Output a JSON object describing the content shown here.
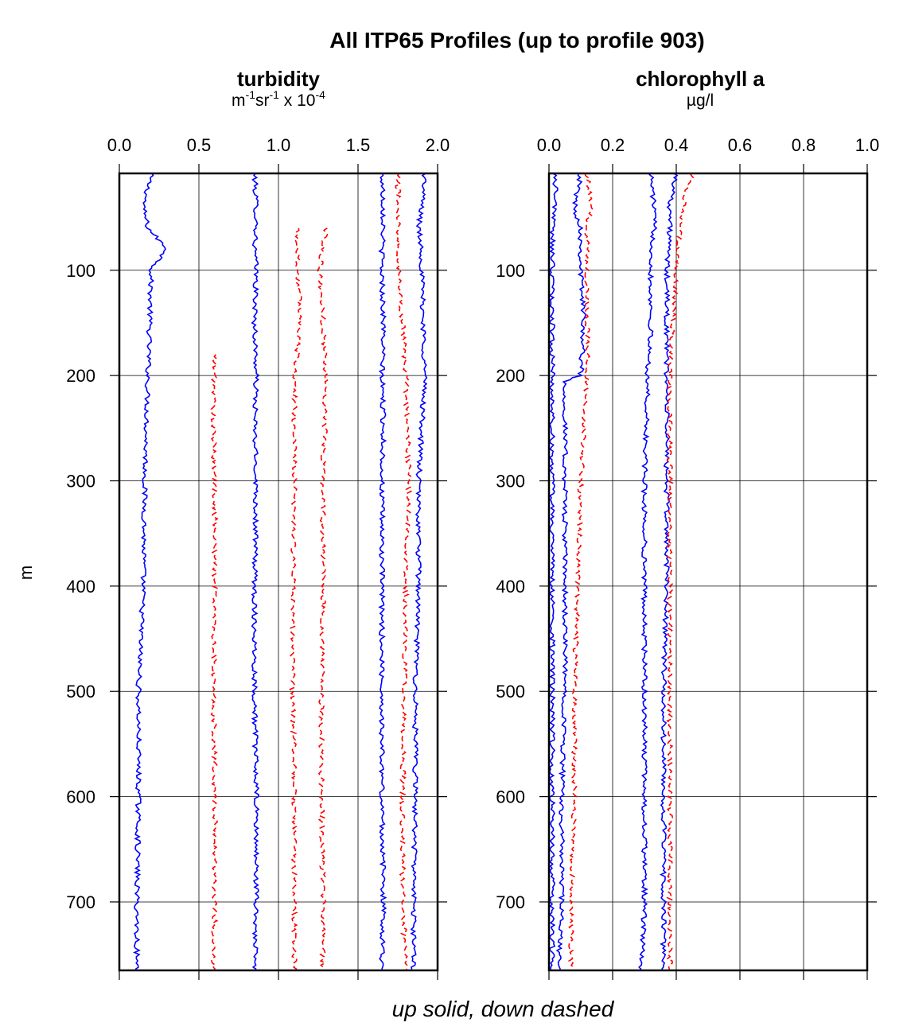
{
  "title": "All ITP65 Profiles (up to profile 903)",
  "footer": "up solid, down dashed",
  "ylabel": "m",
  "colors": {
    "up": "#0000ff",
    "down": "#ff0000",
    "grid": "#000000"
  },
  "chart_data": [
    {
      "type": "line",
      "panel": "turbidity",
      "title": "turbidity",
      "unit": {
        "base1": "m",
        "sup1": "-1",
        "base2": "sr",
        "sup2": "-1",
        "base3": " x 10",
        "sup3": "-4"
      },
      "xlim": [
        0.0,
        2.0
      ],
      "ylim": [
        765,
        8
      ],
      "y_inverted": true,
      "xticks": [
        "0.0",
        "0.5",
        "1.0",
        "1.5",
        "2.0"
      ],
      "yticks": [
        "100",
        "200",
        "300",
        "400",
        "500",
        "600",
        "700"
      ],
      "grid": true,
      "series": [
        {
          "style": "solid",
          "depth": [
            8,
            40,
            60,
            80,
            100,
            150,
            200,
            250,
            300,
            400,
            500,
            600,
            700,
            765
          ],
          "values": [
            0.2,
            0.15,
            0.18,
            0.3,
            0.2,
            0.19,
            0.18,
            0.17,
            0.16,
            0.15,
            0.12,
            0.12,
            0.11,
            0.11
          ]
        },
        {
          "style": "solid",
          "depth": [
            8,
            40,
            60,
            80,
            100,
            150,
            200,
            250,
            300,
            400,
            500,
            600,
            700,
            765
          ],
          "values": [
            0.85,
            0.86,
            0.86,
            0.85,
            0.86,
            0.85,
            0.86,
            0.85,
            0.86,
            0.85,
            0.85,
            0.86,
            0.86,
            0.85
          ]
        },
        {
          "style": "solid",
          "depth": [
            8,
            40,
            60,
            80,
            100,
            150,
            200,
            250,
            300,
            400,
            500,
            600,
            700,
            765
          ],
          "values": [
            1.65,
            1.66,
            1.66,
            1.65,
            1.65,
            1.66,
            1.65,
            1.66,
            1.65,
            1.65,
            1.65,
            1.65,
            1.66,
            1.65
          ]
        },
        {
          "style": "solid",
          "depth": [
            8,
            40,
            60,
            80,
            100,
            150,
            200,
            250,
            300,
            400,
            500,
            600,
            700,
            765
          ],
          "values": [
            1.92,
            1.9,
            1.88,
            1.9,
            1.9,
            1.91,
            1.92,
            1.9,
            1.88,
            1.88,
            1.86,
            1.86,
            1.85,
            1.85
          ]
        },
        {
          "style": "dashed",
          "depth": [
            180,
            250,
            300,
            400,
            500,
            600,
            700,
            765
          ],
          "values": [
            0.6,
            0.59,
            0.6,
            0.6,
            0.59,
            0.6,
            0.6,
            0.59
          ]
        },
        {
          "style": "dashed",
          "depth": [
            60,
            100,
            150,
            200,
            300,
            400,
            500,
            600,
            700,
            765
          ],
          "values": [
            1.12,
            1.12,
            1.14,
            1.1,
            1.1,
            1.09,
            1.09,
            1.1,
            1.1,
            1.1
          ]
        },
        {
          "style": "dashed",
          "depth": [
            60,
            100,
            150,
            200,
            300,
            400,
            500,
            600,
            700,
            765
          ],
          "values": [
            1.3,
            1.26,
            1.28,
            1.3,
            1.28,
            1.28,
            1.27,
            1.27,
            1.28,
            1.28
          ]
        },
        {
          "style": "dashed",
          "depth": [
            8,
            100,
            200,
            300,
            400,
            500,
            600,
            700,
            765
          ],
          "values": [
            1.75,
            1.76,
            1.8,
            1.82,
            1.8,
            1.79,
            1.78,
            1.78,
            1.8
          ]
        }
      ]
    },
    {
      "type": "line",
      "panel": "chlorophyll a",
      "title": "chlorophyll a",
      "unit": {
        "text": "µg/l"
      },
      "xlim": [
        0.0,
        1.0
      ],
      "ylim": [
        765,
        8
      ],
      "y_inverted": true,
      "xticks": [
        "0.0",
        "0.2",
        "0.4",
        "0.6",
        "0.8",
        "1.0"
      ],
      "yticks": [
        "100",
        "200",
        "300",
        "400",
        "500",
        "600",
        "700"
      ],
      "grid": true,
      "series": [
        {
          "style": "solid",
          "depth": [
            8,
            40,
            60,
            100,
            150,
            200,
            205,
            300,
            400,
            500,
            600,
            700,
            765
          ],
          "values": [
            0.02,
            0.02,
            0.01,
            0.01,
            0.01,
            0.01,
            0.01,
            0.01,
            0.01,
            0.01,
            0.01,
            0.01,
            0.01
          ]
        },
        {
          "style": "solid",
          "depth": [
            8,
            40,
            60,
            100,
            150,
            200,
            205,
            300,
            400,
            500,
            600,
            700,
            765
          ],
          "values": [
            0.1,
            0.08,
            0.1,
            0.1,
            0.11,
            0.1,
            0.05,
            0.05,
            0.05,
            0.05,
            0.04,
            0.04,
            0.03
          ]
        },
        {
          "style": "solid",
          "depth": [
            8,
            40,
            60,
            100,
            150,
            200,
            300,
            400,
            500,
            600,
            700,
            765
          ],
          "values": [
            0.32,
            0.33,
            0.33,
            0.32,
            0.32,
            0.31,
            0.3,
            0.3,
            0.3,
            0.3,
            0.3,
            0.29
          ]
        },
        {
          "style": "solid",
          "depth": [
            8,
            40,
            60,
            100,
            150,
            200,
            300,
            400,
            500,
            600,
            700,
            765
          ],
          "values": [
            0.4,
            0.38,
            0.38,
            0.37,
            0.37,
            0.37,
            0.37,
            0.37,
            0.36,
            0.36,
            0.36,
            0.36
          ]
        },
        {
          "style": "dashed",
          "depth": [
            8,
            40,
            60,
            100,
            150,
            200,
            300,
            400,
            500,
            600,
            700,
            765
          ],
          "values": [
            0.12,
            0.13,
            0.12,
            0.12,
            0.12,
            0.12,
            0.1,
            0.09,
            0.08,
            0.08,
            0.07,
            0.07
          ]
        },
        {
          "style": "dashed",
          "depth": [
            8,
            40,
            60,
            100,
            150,
            200,
            300,
            400,
            500,
            600,
            700,
            765
          ],
          "values": [
            0.45,
            0.42,
            0.41,
            0.4,
            0.39,
            0.38,
            0.38,
            0.38,
            0.38,
            0.38,
            0.38,
            0.38
          ]
        }
      ]
    }
  ]
}
